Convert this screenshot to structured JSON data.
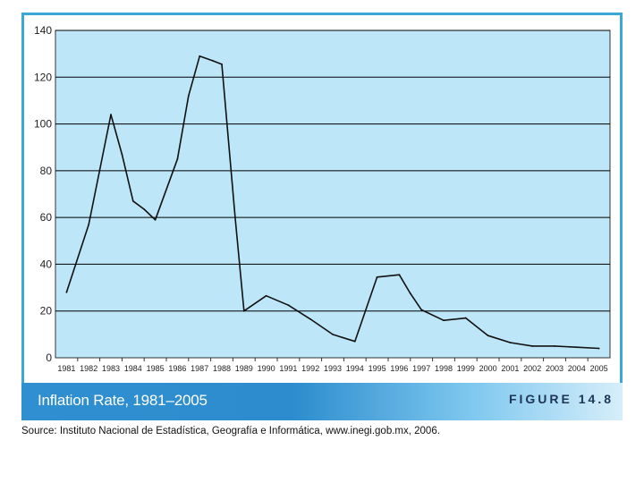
{
  "chart_data": {
    "type": "line",
    "title": "Inflation Rate, 1981–2005",
    "figure_label": "FIGURE 14.8",
    "source": "Source: Instituto Nacional de Estadística, Geografía e Informática, www.inegi.gob.mx, 2006.",
    "xlabel": "",
    "ylabel": "",
    "ylim": [
      0,
      140
    ],
    "yticks": [
      0,
      20,
      40,
      60,
      80,
      100,
      120,
      140
    ],
    "xticks": [
      "1981",
      "1982",
      "1983",
      "1984",
      "1985",
      "1986",
      "1987",
      "1988",
      "1989",
      "1990",
      "1991",
      "1992",
      "1993",
      "1994",
      "1995",
      "1996",
      "1997",
      "1998",
      "1999",
      "2000",
      "2001",
      "2002",
      "2003",
      "2004",
      "2005"
    ],
    "grid": true,
    "colors": {
      "plot_bg": "#bde6f8",
      "line": "#111111",
      "grid": "#000000"
    },
    "series": [
      {
        "name": "Inflation Rate",
        "x": [
          1981.0,
          1982.0,
          1983.0,
          1983.5,
          1984.0,
          1984.5,
          1985.0,
          1986.0,
          1986.5,
          1987.0,
          1987.6,
          1988.0,
          1988.6,
          1989.0,
          1990.0,
          1991.0,
          1992.0,
          1993.0,
          1994.0,
          1995.0,
          1996.0,
          1996.5,
          1997.0,
          1998.0,
          1999.0,
          2000.0,
          2001.0,
          2002.0,
          2003.0,
          2004.0,
          2005.0
        ],
        "values": [
          28.0,
          57.0,
          104.0,
          87.0,
          67.0,
          63.5,
          59.0,
          85.0,
          112.0,
          129.0,
          127.0,
          125.5,
          60.0,
          20.0,
          26.5,
          22.5,
          16.5,
          10.0,
          7.0,
          34.5,
          35.5,
          27.5,
          20.5,
          16.0,
          17.0,
          9.5,
          6.5,
          5.0,
          5.0,
          4.5,
          4.0
        ]
      }
    ]
  }
}
